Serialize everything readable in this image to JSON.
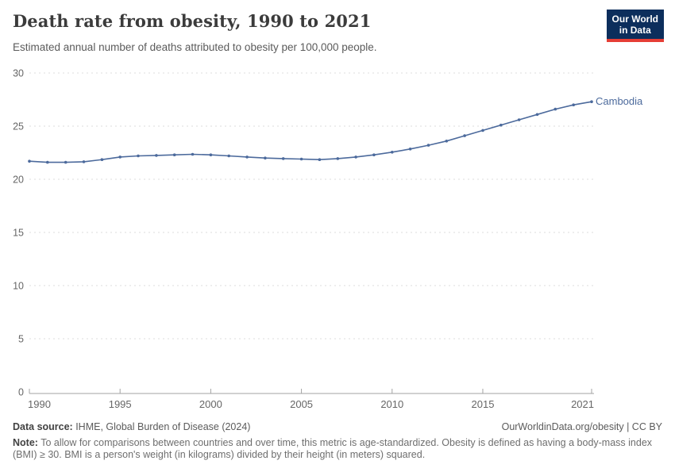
{
  "header": {
    "title": "Death rate from obesity, 1990 to 2021",
    "subtitle": "Estimated annual number of deaths attributed to obesity per 100,000 people.",
    "logo_line1": "Our World",
    "logo_line2": "in Data"
  },
  "chart_data": {
    "type": "line",
    "title": "Death rate from obesity, 1990 to 2021",
    "x": [
      1990,
      1991,
      1992,
      1993,
      1994,
      1995,
      1996,
      1997,
      1998,
      1999,
      2000,
      2001,
      2002,
      2003,
      2004,
      2005,
      2006,
      2007,
      2008,
      2009,
      2010,
      2011,
      2012,
      2013,
      2014,
      2015,
      2016,
      2017,
      2018,
      2019,
      2020,
      2021
    ],
    "series": [
      {
        "name": "Cambodia",
        "color": "#4C6A9C",
        "values": [
          21.7,
          21.6,
          21.6,
          21.65,
          21.85,
          22.1,
          22.2,
          22.25,
          22.3,
          22.35,
          22.3,
          22.2,
          22.1,
          22.0,
          21.95,
          21.9,
          21.85,
          21.95,
          22.1,
          22.3,
          22.55,
          22.85,
          23.2,
          23.6,
          24.1,
          24.6,
          25.1,
          25.6,
          26.1,
          26.6,
          27.0,
          27.3
        ]
      }
    ],
    "xlabel": "",
    "ylabel": "",
    "ylim": [
      0,
      30
    ],
    "yticks": [
      0,
      5,
      10,
      15,
      20,
      25,
      30
    ],
    "xticks": [
      1990,
      1995,
      2000,
      2005,
      2010,
      2015,
      2021
    ],
    "grid": "horizontal-dashed",
    "legend_position": "end-of-line-label"
  },
  "footer": {
    "datasource_label": "Data source:",
    "datasource_value": " IHME, Global Burden of Disease (2024)",
    "rights": "OurWorldinData.org/obesity | CC BY",
    "note_label": "Note:",
    "note_value": " To allow for comparisons between countries and over time, this metric is age-standardized. Obesity is defined as having a body-mass index (BMI) ≥ 30. BMI is a person's weight (in kilograms) divided by their height (in meters) squared."
  },
  "colors": {
    "line": "#4C6A9C",
    "grid": "#dcdcdc",
    "axis": "#a3a3a3",
    "tick_label": "#666666",
    "logo_bg": "#0c2e5c",
    "logo_red": "#e63e36"
  }
}
